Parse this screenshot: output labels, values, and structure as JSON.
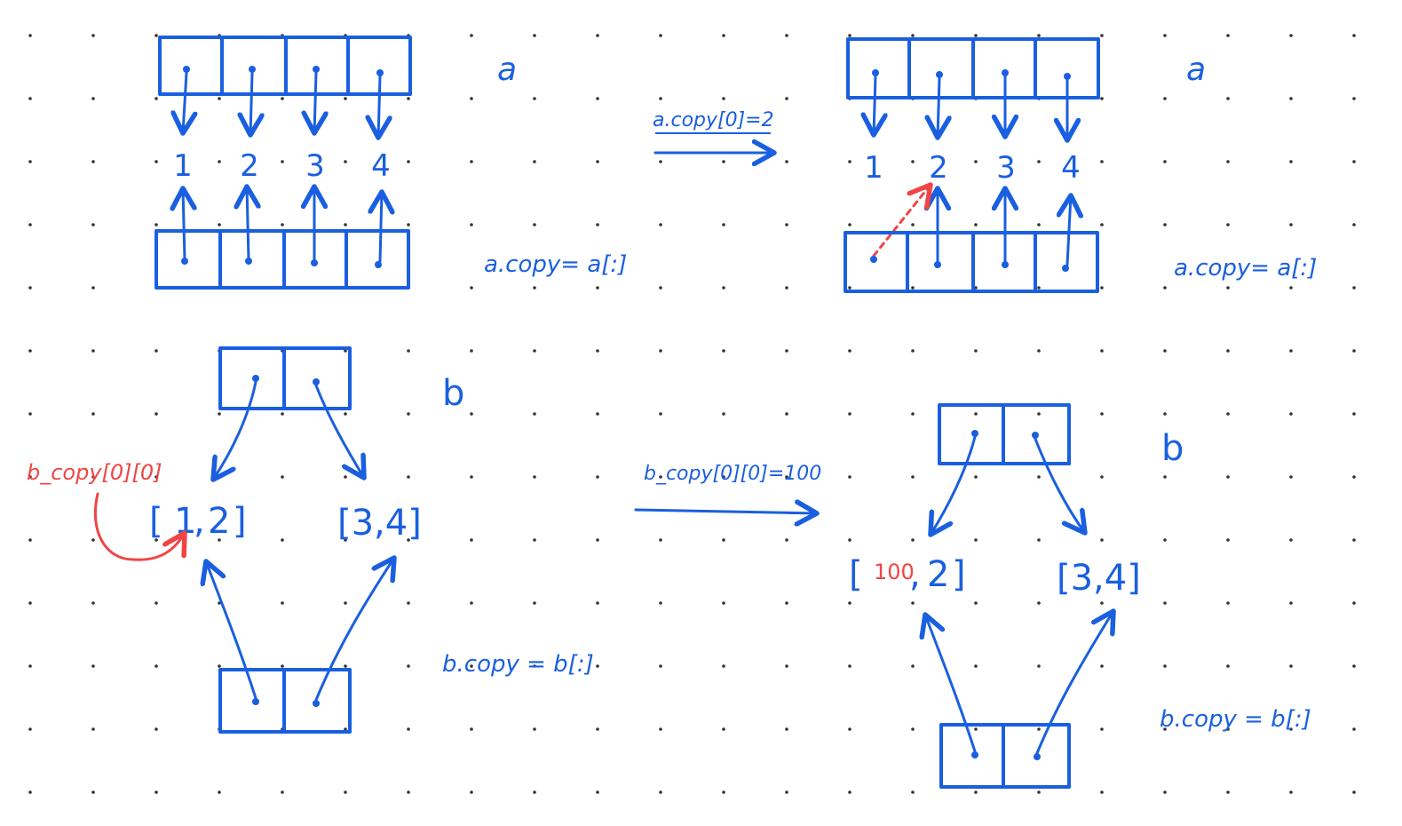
{
  "colors": {
    "ink": "#1a5fe0",
    "highlight": "#f04545",
    "grid_dot": "#333333",
    "background": "#ffffff"
  },
  "panel_a_before": {
    "name": "a",
    "values": [
      "1",
      "2",
      "3",
      "4"
    ],
    "copy_label": "a.copy= a[:]"
  },
  "transition_a": {
    "label": "a.copy[0]=2"
  },
  "panel_a_after": {
    "name": "a",
    "values": [
      "1",
      "2",
      "3",
      "4"
    ],
    "copy_label": "a.copy= a[:]"
  },
  "panel_b_before": {
    "name": "b",
    "list_left": {
      "open": "[",
      "first": "1",
      "sep": ",",
      "second": "2",
      "close": "]"
    },
    "list_right": "[3,4]",
    "copy_label": "b.copy = b[:]",
    "red_annotation": "b_copy[0][0]"
  },
  "transition_b": {
    "label": "b_copy[0][0]=100"
  },
  "panel_b_after": {
    "name": "b",
    "list_left": {
      "open": "[",
      "first": "100",
      "sep": ",",
      "second": "2",
      "close": "]"
    },
    "list_right": "[3,4]",
    "copy_label": "b.copy = b[:]"
  }
}
